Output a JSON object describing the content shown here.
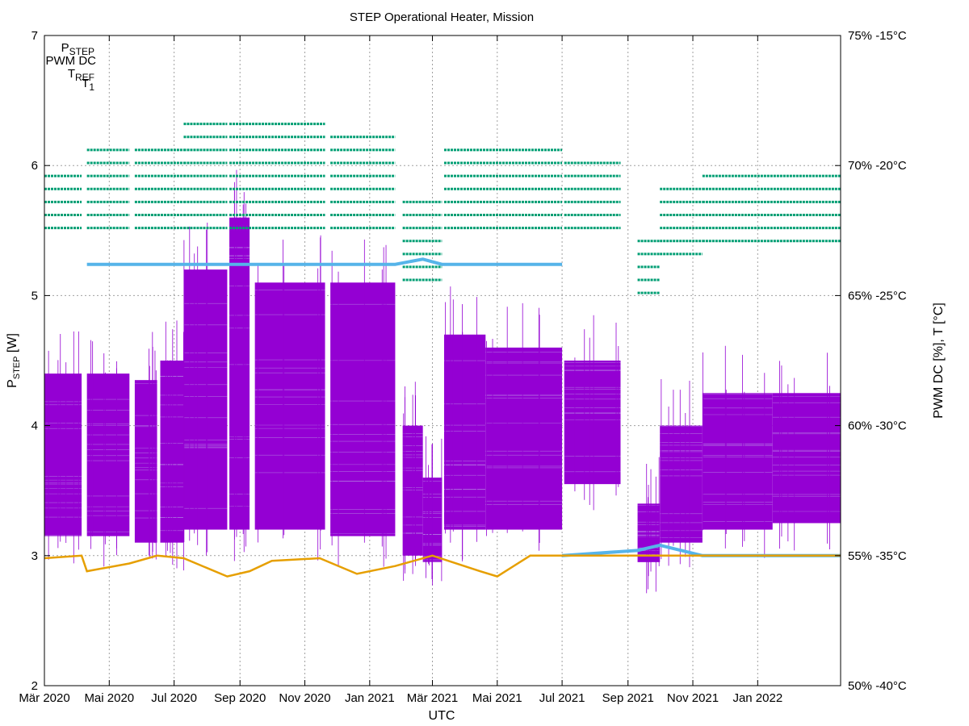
{
  "chart_data": {
    "type": "scatter",
    "title": "STEP Operational Heater, Mission",
    "xlabel": "UTC",
    "ylabel_main": "P",
    "ylabel_sub": "STEP",
    "ylabel_unit": " [W]",
    "y2label": "PWM DC [%],  T [°C]",
    "ylim": [
      2,
      7
    ],
    "y_ticks": [
      "2",
      "3",
      "4",
      "5",
      "6",
      "7"
    ],
    "y2_ticks": [
      "50%  -40°C",
      "55%  -35°C",
      "60%  -30°C",
      "65%  -25°C",
      "70%  -20°C",
      "75%  -15°C"
    ],
    "x_range": [
      "2020-03-01",
      "2022-03-20"
    ],
    "x_ticks": [
      {
        "date": "2020-03-01",
        "label": "Mär 2020"
      },
      {
        "date": "2020-05-01",
        "label": "Mai 2020"
      },
      {
        "date": "2020-07-01",
        "label": "Jul 2020"
      },
      {
        "date": "2020-09-01",
        "label": "Sep 2020"
      },
      {
        "date": "2020-11-01",
        "label": "Nov 2020"
      },
      {
        "date": "2021-01-01",
        "label": "Jan 2021"
      },
      {
        "date": "2021-03-01",
        "label": "Mär 2021"
      },
      {
        "date": "2021-05-01",
        "label": "Mai 2021"
      },
      {
        "date": "2021-07-01",
        "label": "Jul 2021"
      },
      {
        "date": "2021-09-01",
        "label": "Sep 2021"
      },
      {
        "date": "2021-11-01",
        "label": "Nov 2021"
      },
      {
        "date": "2022-01-01",
        "label": "Jan 2022"
      }
    ],
    "grid": true,
    "legend_position": "top-left",
    "series": [
      {
        "name": "P",
        "name_sub": "STEP",
        "color": "#9400d3",
        "axis": "left",
        "bands": [
          {
            "start": "2020-03-01",
            "end": "2020-04-05",
            "low": 3.15,
            "high": 4.4
          },
          {
            "start": "2020-04-10",
            "end": "2020-05-20",
            "low": 3.15,
            "high": 4.4
          },
          {
            "start": "2020-05-25",
            "end": "2020-06-15",
            "low": 3.1,
            "high": 4.35
          },
          {
            "start": "2020-06-18",
            "end": "2020-07-10",
            "low": 3.1,
            "high": 4.5
          },
          {
            "start": "2020-07-10",
            "end": "2020-08-20",
            "low": 3.2,
            "high": 5.2
          },
          {
            "start": "2020-08-22",
            "end": "2020-09-10",
            "low": 3.2,
            "high": 5.6
          },
          {
            "start": "2020-09-15",
            "end": "2020-11-20",
            "low": 3.2,
            "high": 5.1
          },
          {
            "start": "2020-11-25",
            "end": "2021-01-25",
            "low": 3.15,
            "high": 5.1
          },
          {
            "start": "2021-02-01",
            "end": "2021-02-20",
            "low": 3.0,
            "high": 4.0
          },
          {
            "start": "2021-02-20",
            "end": "2021-03-10",
            "low": 2.95,
            "high": 3.6
          },
          {
            "start": "2021-03-12",
            "end": "2021-04-20",
            "low": 3.2,
            "high": 4.7
          },
          {
            "start": "2021-04-20",
            "end": "2021-07-01",
            "low": 3.2,
            "high": 4.6
          },
          {
            "start": "2021-07-03",
            "end": "2021-08-25",
            "low": 3.55,
            "high": 4.5
          },
          {
            "start": "2021-09-10",
            "end": "2021-10-01",
            "low": 2.95,
            "high": 3.4
          },
          {
            "start": "2021-10-01",
            "end": "2021-11-10",
            "low": 3.1,
            "high": 4.0
          },
          {
            "start": "2021-11-10",
            "end": "2022-01-15",
            "low": 3.2,
            "high": 4.25
          },
          {
            "start": "2022-01-15",
            "end": "2022-03-20",
            "low": 3.25,
            "high": 4.25
          }
        ]
      },
      {
        "name": "PWM DC",
        "color": "#009e73",
        "axis": "right",
        "levels_percent": [
          67.6,
          68.1,
          68.6,
          69.1,
          69.6,
          70.1,
          70.6,
          71.1,
          71.6
        ],
        "bands": [
          {
            "start": "2020-03-01",
            "end": "2020-04-05",
            "low": 67.6,
            "high": 69.6
          },
          {
            "start": "2020-04-10",
            "end": "2020-05-20",
            "low": 67.6,
            "high": 70.6
          },
          {
            "start": "2020-05-25",
            "end": "2020-07-10",
            "low": 67.6,
            "high": 70.6
          },
          {
            "start": "2020-07-10",
            "end": "2020-08-20",
            "low": 67.6,
            "high": 71.6
          },
          {
            "start": "2020-08-22",
            "end": "2020-11-20",
            "low": 67.6,
            "high": 71.6
          },
          {
            "start": "2020-11-25",
            "end": "2021-01-25",
            "low": 67.6,
            "high": 71.1
          },
          {
            "start": "2021-02-01",
            "end": "2021-03-10",
            "low": 65.6,
            "high": 68.6
          },
          {
            "start": "2021-03-12",
            "end": "2021-07-01",
            "low": 67.6,
            "high": 70.6
          },
          {
            "start": "2021-07-03",
            "end": "2021-08-25",
            "low": 67.6,
            "high": 70.1
          },
          {
            "start": "2021-09-10",
            "end": "2021-10-01",
            "low": 65.1,
            "high": 67.1
          },
          {
            "start": "2021-10-01",
            "end": "2021-11-10",
            "low": 66.6,
            "high": 69.1
          },
          {
            "start": "2021-11-10",
            "end": "2022-03-20",
            "low": 67.1,
            "high": 69.6
          }
        ]
      },
      {
        "name": "T",
        "name_sub": "REF",
        "color": "#56b4e9",
        "axis": "right",
        "points": [
          {
            "date": "2020-04-10",
            "t": -23.8
          },
          {
            "date": "2020-07-01",
            "t": -23.8
          },
          {
            "date": "2020-09-01",
            "t": -23.8
          },
          {
            "date": "2020-11-01",
            "t": -23.8
          },
          {
            "date": "2021-01-25",
            "t": -23.8
          },
          {
            "date": "2021-02-20",
            "t": -23.6
          },
          {
            "date": "2021-03-10",
            "t": -23.8
          },
          {
            "date": "2021-07-01",
            "t": -23.8
          },
          {
            "date": "2021-07-01",
            "t": -35.0
          },
          {
            "date": "2021-09-10",
            "t": -34.8
          },
          {
            "date": "2021-10-01",
            "t": -34.6
          },
          {
            "date": "2021-11-10",
            "t": -35.0
          },
          {
            "date": "2022-03-20",
            "t": -35.0
          }
        ]
      },
      {
        "name": "T",
        "name_sub": "1",
        "color": "#e69f00",
        "axis": "right",
        "points": [
          {
            "date": "2020-03-01",
            "t": -35.1
          },
          {
            "date": "2020-04-05",
            "t": -35.0
          },
          {
            "date": "2020-04-10",
            "t": -35.6
          },
          {
            "date": "2020-05-20",
            "t": -35.3
          },
          {
            "date": "2020-06-15",
            "t": -35.0
          },
          {
            "date": "2020-07-10",
            "t": -35.1
          },
          {
            "date": "2020-08-20",
            "t": -35.8
          },
          {
            "date": "2020-09-10",
            "t": -35.6
          },
          {
            "date": "2020-10-01",
            "t": -35.2
          },
          {
            "date": "2020-11-15",
            "t": -35.1
          },
          {
            "date": "2020-12-20",
            "t": -35.7
          },
          {
            "date": "2021-01-25",
            "t": -35.4
          },
          {
            "date": "2021-03-01",
            "t": -35.0
          },
          {
            "date": "2021-04-15",
            "t": -35.6
          },
          {
            "date": "2021-05-01",
            "t": -35.8
          },
          {
            "date": "2021-06-01",
            "t": -35.0
          },
          {
            "date": "2021-09-01",
            "t": -35.0
          },
          {
            "date": "2021-11-10",
            "t": -35.0
          },
          {
            "date": "2022-03-20",
            "t": -35.0
          }
        ]
      }
    ]
  }
}
